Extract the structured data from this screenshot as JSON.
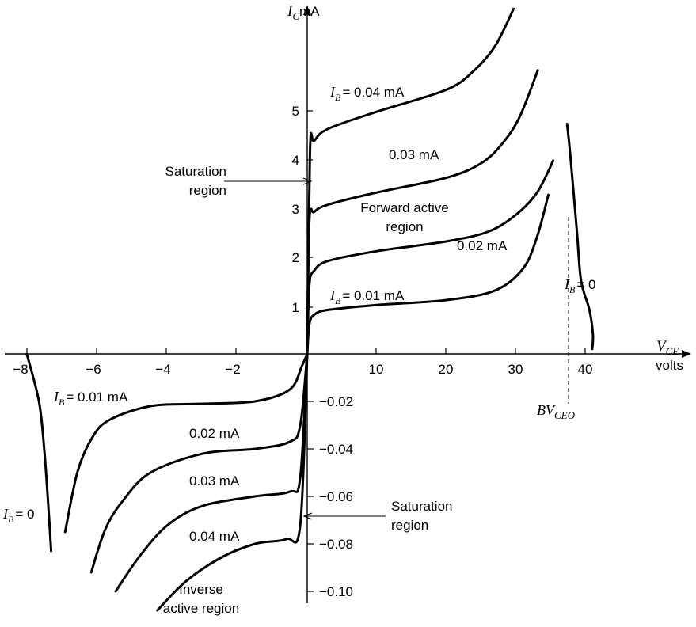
{
  "chart_data": {
    "type": "line",
    "title": "",
    "x_axis": {
      "label": "V",
      "label_sub": "CE",
      "unit": "volts",
      "positive_ticks": [
        "10",
        "20",
        "30",
        "40"
      ],
      "negative_ticks": [
        "−8",
        "−6",
        "−4",
        "−2"
      ]
    },
    "y_axis": {
      "label": "I",
      "label_sub": "C",
      "unit": "mA",
      "positive_ticks": [
        "1",
        "2",
        "3",
        "4",
        "5"
      ],
      "negative_ticks": [
        "−0.02",
        "−0.04",
        "−0.06",
        "−0.08",
        "−0.10"
      ]
    },
    "scales": {
      "forward": {
        "x_range": [
          0,
          45
        ],
        "y_range": [
          0,
          6
        ]
      },
      "inverse": {
        "x_range": [
          -8,
          0
        ],
        "y_range": [
          -0.1,
          0
        ]
      }
    },
    "series": [
      {
        "quadrant": "forward",
        "points": [
          [
            0,
            0
          ],
          [
            0.3,
            0.6
          ],
          [
            1,
            0.8
          ],
          [
            3,
            0.9
          ],
          [
            10,
            1.0
          ],
          [
            20,
            1.1
          ],
          [
            27,
            1.3
          ],
          [
            31,
            1.75
          ],
          [
            33,
            2.4
          ],
          [
            34.6,
            3.25
          ]
        ]
      },
      {
        "quadrant": "forward",
        "points": [
          [
            0,
            0
          ],
          [
            0.3,
            1.4
          ],
          [
            1,
            1.7
          ],
          [
            3,
            1.9
          ],
          [
            10,
            2.1
          ],
          [
            20,
            2.3
          ],
          [
            26,
            2.5
          ],
          [
            30,
            2.85
          ],
          [
            33,
            3.3
          ],
          [
            35.3,
            3.95
          ]
        ]
      },
      {
        "quadrant": "forward",
        "points": [
          [
            0,
            0
          ],
          [
            0.3,
            2.7
          ],
          [
            1,
            2.9
          ],
          [
            3,
            3.05
          ],
          [
            10,
            3.3
          ],
          [
            20,
            3.6
          ],
          [
            25,
            3.9
          ],
          [
            28,
            4.3
          ],
          [
            30.5,
            4.85
          ],
          [
            33.1,
            5.8
          ]
        ]
      },
      {
        "quadrant": "forward",
        "points": [
          [
            0,
            0
          ],
          [
            0.4,
            4.15
          ],
          [
            1,
            4.35
          ],
          [
            3,
            4.6
          ],
          [
            10,
            4.95
          ],
          [
            20,
            5.4
          ],
          [
            24,
            5.8
          ],
          [
            27,
            6.3
          ],
          [
            29.6,
            7.05
          ]
        ]
      },
      {
        "quadrant": "forward",
        "points": [
          [
            37.3,
            4.7
          ],
          [
            37.8,
            4.0
          ],
          [
            38.7,
            2.5
          ],
          [
            39.3,
            1.5
          ],
          [
            40.5,
            0.9
          ],
          [
            41,
            0.4
          ],
          [
            40.9,
            0.1
          ]
        ]
      },
      {
        "quadrant": "inverse",
        "points": [
          [
            0,
            0
          ],
          [
            -0.15,
            -0.005
          ],
          [
            -0.5,
            -0.015
          ],
          [
            -1.5,
            -0.02
          ],
          [
            -3,
            -0.021
          ],
          [
            -4.5,
            -0.022
          ],
          [
            -5.7,
            -0.028
          ],
          [
            -6.2,
            -0.036
          ],
          [
            -6.6,
            -0.05
          ],
          [
            -6.95,
            -0.075
          ]
        ]
      },
      {
        "quadrant": "inverse",
        "points": [
          [
            0,
            0
          ],
          [
            -0.2,
            -0.03
          ],
          [
            -0.5,
            -0.037
          ],
          [
            -1.5,
            -0.04
          ],
          [
            -3,
            -0.042
          ],
          [
            -4.5,
            -0.05
          ],
          [
            -5.3,
            -0.062
          ],
          [
            -5.8,
            -0.074
          ],
          [
            -6.2,
            -0.092
          ]
        ]
      },
      {
        "quadrant": "inverse",
        "points": [
          [
            0,
            0
          ],
          [
            -0.2,
            -0.052
          ],
          [
            -0.5,
            -0.058
          ],
          [
            -1.5,
            -0.06
          ],
          [
            -3,
            -0.064
          ],
          [
            -4,
            -0.072
          ],
          [
            -4.8,
            -0.085
          ],
          [
            -5.5,
            -0.1
          ]
        ]
      },
      {
        "quadrant": "inverse",
        "points": [
          [
            0,
            0
          ],
          [
            -0.2,
            -0.072
          ],
          [
            -0.6,
            -0.078
          ],
          [
            -1.5,
            -0.08
          ],
          [
            -2.5,
            -0.086
          ],
          [
            -3.5,
            -0.096
          ],
          [
            -4.3,
            -0.108
          ]
        ]
      },
      {
        "quadrant": "inverse",
        "points": [
          [
            -8.05,
            0
          ],
          [
            -7.7,
            -0.02
          ],
          [
            -7.55,
            -0.04
          ],
          [
            -7.45,
            -0.06
          ],
          [
            -7.35,
            -0.083
          ]
        ]
      }
    ],
    "curve_labels": {
      "fwd_004": "= 0.04 mA",
      "fwd_003": "0.03 mA",
      "fwd_002": "0.02 mA",
      "fwd_001": "= 0.01 mA",
      "fwd_0": "= 0",
      "inv_001": "= 0.01 mA",
      "inv_002": "0.02 mA",
      "inv_003": "0.03 mA",
      "inv_004": "0.04 mA",
      "inv_0": "= 0"
    },
    "ib_symbol": "I",
    "ib_sub": "B",
    "annotations": {
      "saturation_fwd_1": "Saturation",
      "saturation_fwd_2": "region",
      "forward_active_1": "Forward active",
      "forward_active_2": "region",
      "saturation_inv_1": "Saturation",
      "saturation_inv_2": "region",
      "inverse_active_1": "Inverse",
      "inverse_active_2": "active region",
      "bv_main": "BV",
      "bv_sub": "CEO",
      "bv_value": 37.5
    }
  }
}
